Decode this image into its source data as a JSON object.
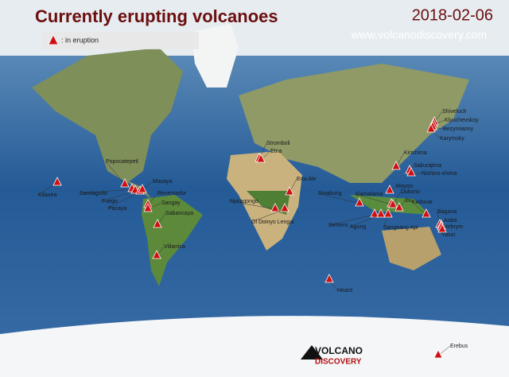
{
  "header": {
    "title": "Currently erupting volcanoes",
    "date": "2018-02-06",
    "website": "www.volcanodiscovery.com"
  },
  "legend": {
    "label": ":  in eruption"
  },
  "logo": {
    "line1": "VOLCANO",
    "line2": "DISCOVERY"
  },
  "volcanoes": [
    "Kilauea",
    "Popocatepetl",
    "Santiaguito",
    "Fuego",
    "Pacaya",
    "Masaya",
    "Reventador",
    "Sangay",
    "Sabancaya",
    "Villarrica",
    "Stromboli",
    "Etna",
    "Erta Ale",
    "Nyiragongo",
    "Ol Doinyo Lengai",
    "Heard",
    "Sinabung",
    "Gamalama",
    "Shiveluch",
    "Klyuchevskoy",
    "Bezymianny",
    "Karymsky",
    "Kirishima",
    "Sakurajima",
    "Nishino-shima",
    "Mayon",
    "Dukono",
    "Ibu",
    "Kadovar",
    "Bagana",
    "Aoba",
    "Ambrym",
    "Yasur",
    "Semeru",
    "Agung",
    "Sangeang Api",
    "Erebus"
  ]
}
